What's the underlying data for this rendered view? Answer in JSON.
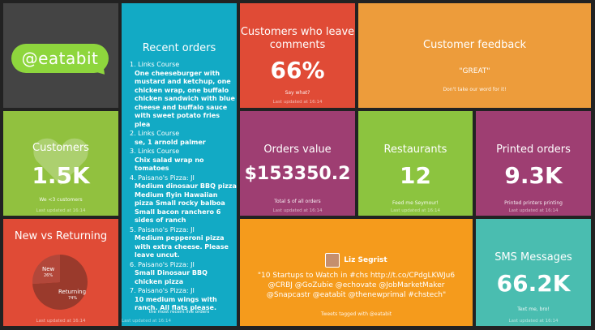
{
  "logo": {
    "text": "@eatabit"
  },
  "recent_orders": {
    "title": "Recent orders",
    "items": [
      {
        "name": "1. Links Course",
        "desc": "One cheeseburger with mustard and ketchup, one chicken wrap, one buffalo chicken sandwich with blue cheese and buffalo sauce with sweet potato fries plea"
      },
      {
        "name": "2. Links Course",
        "desc": "se, 1 arnold palmer"
      },
      {
        "name": "3. Links Course",
        "desc": "Chix salad wrap no tomatoes"
      },
      {
        "name": "4. Paisano's Pizza: JI",
        "desc": "Medium dinosaur BBQ pizza Medium flyin Hawaiian pizza Small rocky balboa Small bacon ranchero 6 sides of ranch"
      },
      {
        "name": "5. Paisano's Pizza: JI",
        "desc": "Medium pepperoni pizza with extra cheese. Please leave uncut."
      },
      {
        "name": "6. Paisano's Pizza: JI",
        "desc": "Small Dinosaur BBQ chicken pizza"
      },
      {
        "name": "7. Paisano's Pizza: JI",
        "desc": "10 medium wings with ranch. All flats please."
      }
    ],
    "footer": "the most recent live orders",
    "updated": "Last updated at 16:14"
  },
  "comments": {
    "title": "Customers who leave comments",
    "value": "66%",
    "subtitle": "Say what?",
    "updated": "Last updated at 16:14"
  },
  "feedback": {
    "title": "Customer feedback",
    "quote": "\"GREAT\"",
    "subtitle": "Don't take our word for it!"
  },
  "customers": {
    "title": "Customers",
    "value": "1.5K",
    "subtitle": "We <3 customers",
    "updated": "Last updated at 16:14"
  },
  "orders_value": {
    "title": "Orders value",
    "value": "$153350.2",
    "subtitle": "Total $ of all orders",
    "updated": "Last updated at 16:14"
  },
  "restaurants": {
    "title": "Restaurants",
    "value": "12",
    "subtitle": "Feed me Seymour!",
    "updated": "Last updated at 16:14"
  },
  "printed": {
    "title": "Printed orders",
    "value": "9.3K",
    "subtitle": "Printed printers printing",
    "updated": "Last updated at 16:14"
  },
  "new_vs_returning": {
    "title": "New vs Returning",
    "new_label": "New",
    "new_pct": "26%",
    "new_value": 26,
    "ret_label": "Returning",
    "ret_pct": "74%",
    "ret_value": 74,
    "updated": "Last updated at 16:14"
  },
  "tweet": {
    "user": "Liz Segrist",
    "text": "\"10 Startups to Watch in #chs http://t.co/CPdgLKWJu6 @CRBJ @GoZubie @echovate @JobMarketMaker @Snapcastr @eatabit @thenewprimal #chstech\"",
    "subtitle": "Tweets tagged with @eatabit"
  },
  "sms": {
    "title": "SMS Messages",
    "value": "66.2K",
    "subtitle": "Text me, bro!",
    "updated": "Last updated at 16:14"
  },
  "colors": {
    "bg": "#222222",
    "logo_tile": "#444444",
    "bubble": "#8ed63d",
    "teal": "#12aac5",
    "red": "#e04b36",
    "orange": "#ed9c3b",
    "green": "#91c13f",
    "purple": "#9e3e72",
    "tweet_orange": "#f59b1c",
    "sms_teal": "#4abdb0"
  }
}
